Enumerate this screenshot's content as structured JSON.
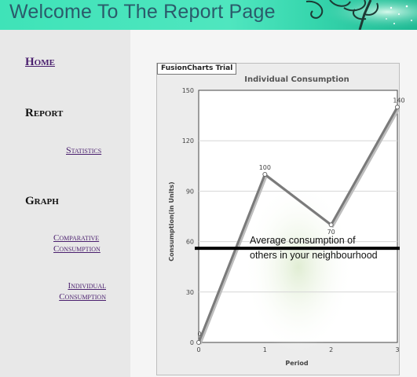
{
  "header": {
    "title": "Welcome To The Report Page"
  },
  "sidebar": {
    "home": "Home",
    "report_heading": "Report",
    "statistics": "Statistics",
    "graph_heading": "Graph",
    "comparative_line1": "Comparative",
    "comparative_line2": "Consumption",
    "individual_line1": "Individual",
    "individual_line2": "Consumption"
  },
  "chart": {
    "trial_label": "FusionCharts Trial",
    "annotation_line1": "Average consumption of",
    "annotation_line2": "others in your neighbourhood"
  },
  "chart_data": {
    "type": "line",
    "title": "Individual Consumption",
    "xlabel": "Period",
    "ylabel": "Consumption(in Units)",
    "categories": [
      "0",
      "1",
      "2",
      "3"
    ],
    "values": [
      0,
      100,
      70,
      140
    ],
    "data_labels": [
      "0",
      "100",
      "70",
      "140"
    ],
    "yticks": [
      0,
      30,
      60,
      90,
      120,
      150
    ],
    "ylim": [
      0,
      150
    ],
    "average_line": 56,
    "grid": true,
    "colors": {
      "line": "#7a7a7a",
      "average": "#000000"
    }
  }
}
